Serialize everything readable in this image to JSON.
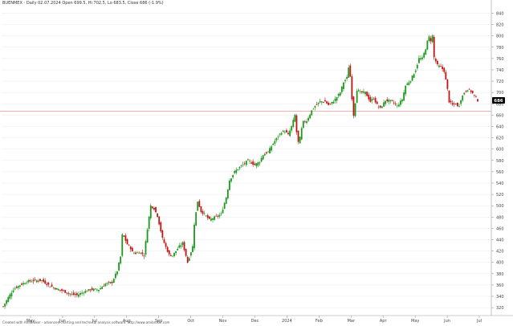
{
  "header": {
    "ticker": "BUENMEX",
    "info": "- Daily 02.07.2024 Open 699.5, Hi 702.5, Lo 683.5, Close 686 (-1.9%)"
  },
  "footer": "Created with AmiBroker - advanced charting and technical analysis software. http://www.amibroker.com",
  "colors": {
    "up": "#1a9a1a",
    "down": "#c01414",
    "level_line": "#f0a0a0",
    "last_badge": "#000000",
    "grid": "#ebebeb"
  },
  "chart_data": {
    "type": "candlestick",
    "x_tick_labels": [
      "May",
      "Jun",
      "Jul",
      "Aug",
      "Sep",
      "Oct",
      "Nov",
      "Dec",
      "2024",
      "Feb",
      "Mar",
      "Apr",
      "May",
      "Jun",
      "Jul"
    ],
    "y_ticks": [
      320,
      340,
      360,
      380,
      400,
      420,
      440,
      460,
      480,
      500,
      520,
      540,
      560,
      580,
      600,
      620,
      640,
      660,
      680,
      700,
      720,
      740,
      760,
      780,
      800,
      820,
      840
    ],
    "ylim": [
      306,
      852
    ],
    "horizontal_line": 667,
    "last_price_label": "686",
    "grid": true,
    "key_points": [
      [
        0,
        322
      ],
      [
        3,
        338
      ],
      [
        6,
        352
      ],
      [
        10,
        360
      ],
      [
        14,
        366
      ],
      [
        19,
        368
      ],
      [
        23,
        368
      ],
      [
        27,
        360
      ],
      [
        31,
        354
      ],
      [
        35,
        350
      ],
      [
        40,
        344
      ],
      [
        44,
        342
      ],
      [
        48,
        348
      ],
      [
        52,
        352
      ],
      [
        57,
        352
      ],
      [
        61,
        362
      ],
      [
        65,
        365
      ],
      [
        68,
        385
      ],
      [
        70,
        410
      ],
      [
        71,
        448
      ],
      [
        72,
        445
      ],
      [
        74,
        432
      ],
      [
        76,
        425
      ],
      [
        77,
        418
      ],
      [
        79,
        416
      ],
      [
        81,
        418
      ],
      [
        83,
        415
      ],
      [
        84,
        412
      ],
      [
        86,
        460
      ],
      [
        88,
        500
      ],
      [
        90,
        495
      ],
      [
        92,
        482
      ],
      [
        95,
        442
      ],
      [
        97,
        427
      ],
      [
        99,
        413
      ],
      [
        101,
        412
      ],
      [
        103,
        420
      ],
      [
        105,
        428
      ],
      [
        107,
        434
      ],
      [
        109,
        412
      ],
      [
        110,
        400
      ],
      [
        113,
        428
      ],
      [
        114,
        468
      ],
      [
        116,
        508
      ],
      [
        118,
        490
      ],
      [
        120,
        485
      ],
      [
        123,
        475
      ],
      [
        125,
        478
      ],
      [
        128,
        482
      ],
      [
        130,
        485
      ],
      [
        133,
        515
      ],
      [
        135,
        545
      ],
      [
        138,
        560
      ],
      [
        141,
        568
      ],
      [
        144,
        575
      ],
      [
        146,
        580
      ],
      [
        150,
        572
      ],
      [
        153,
        578
      ],
      [
        155,
        590
      ],
      [
        158,
        595
      ],
      [
        161,
        610
      ],
      [
        164,
        623
      ],
      [
        166,
        630
      ],
      [
        168,
        632
      ],
      [
        170,
        625
      ],
      [
        172,
        640
      ],
      [
        174,
        660
      ],
      [
        175,
        630
      ],
      [
        176,
        612
      ],
      [
        177,
        620
      ],
      [
        178,
        636
      ],
      [
        179,
        648
      ],
      [
        181,
        650
      ],
      [
        184,
        668
      ],
      [
        186,
        676
      ],
      [
        189,
        684
      ],
      [
        192,
        684
      ],
      [
        194,
        678
      ],
      [
        196,
        682
      ],
      [
        198,
        688
      ],
      [
        201,
        700
      ],
      [
        203,
        718
      ],
      [
        205,
        726
      ],
      [
        206,
        745
      ],
      [
        207,
        728
      ],
      [
        208,
        690
      ],
      [
        209,
        660
      ],
      [
        211,
        705
      ],
      [
        213,
        700
      ],
      [
        216,
        700
      ],
      [
        219,
        684
      ],
      [
        221,
        690
      ],
      [
        223,
        678
      ],
      [
        225,
        672
      ],
      [
        228,
        686
      ],
      [
        231,
        685
      ],
      [
        233,
        682
      ],
      [
        235,
        676
      ],
      [
        238,
        688
      ],
      [
        240,
        712
      ],
      [
        243,
        722
      ],
      [
        246,
        740
      ],
      [
        248,
        760
      ],
      [
        250,
        760
      ],
      [
        252,
        778
      ],
      [
        253,
        790
      ],
      [
        254,
        798
      ],
      [
        255,
        792
      ],
      [
        256,
        800
      ],
      [
        257,
        762
      ],
      [
        259,
        748
      ],
      [
        261,
        745
      ],
      [
        263,
        738
      ],
      [
        264,
        722
      ],
      [
        265,
        705
      ],
      [
        266,
        684
      ],
      [
        268,
        678
      ],
      [
        270,
        680
      ],
      [
        271,
        675
      ],
      [
        272,
        678
      ],
      [
        273,
        688
      ],
      [
        275,
        700
      ],
      [
        277,
        706
      ],
      [
        279,
        702
      ],
      [
        281,
        695
      ],
      [
        282,
        690
      ],
      [
        283,
        686
      ]
    ]
  }
}
